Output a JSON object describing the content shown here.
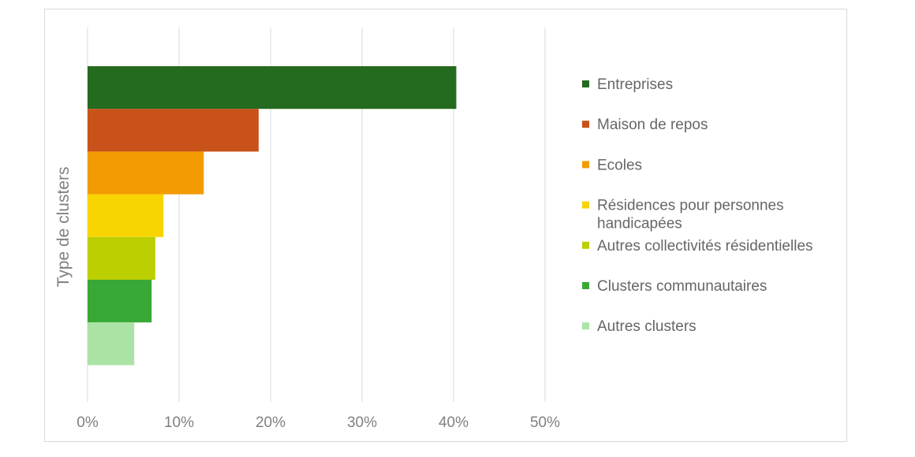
{
  "chart_data": {
    "type": "bar",
    "orientation": "horizontal",
    "stacked": false,
    "ylabel": "Type de clusters",
    "xlabel": "",
    "xlim": [
      0,
      0.5
    ],
    "x_ticks": [
      0,
      0.1,
      0.2,
      0.3,
      0.4,
      0.5
    ],
    "x_tick_labels": [
      "0%",
      "10%",
      "20%",
      "30%",
      "40%",
      "50%"
    ],
    "grid": "vertical",
    "legend_position": "right",
    "series": [
      {
        "name": "Entreprises",
        "value": 0.403,
        "color": "#246b20"
      },
      {
        "name": "Maison de repos",
        "value": 0.187,
        "color": "#c8521a"
      },
      {
        "name": "Ecoles",
        "value": 0.127,
        "color": "#f29b02"
      },
      {
        "name": "Résidences pour personnes handicapées",
        "legend_lines": [
          "Résidences pour personnes",
          "handicapées"
        ],
        "value": 0.083,
        "color": "#f8d400"
      },
      {
        "name": "Autres collectivités résidentielles",
        "value": 0.074,
        "color": "#bccf00"
      },
      {
        "name": "Clusters communautaires",
        "value": 0.07,
        "color": "#38a836"
      },
      {
        "name": "Autres clusters",
        "value": 0.051,
        "color": "#abe3a5"
      }
    ]
  }
}
